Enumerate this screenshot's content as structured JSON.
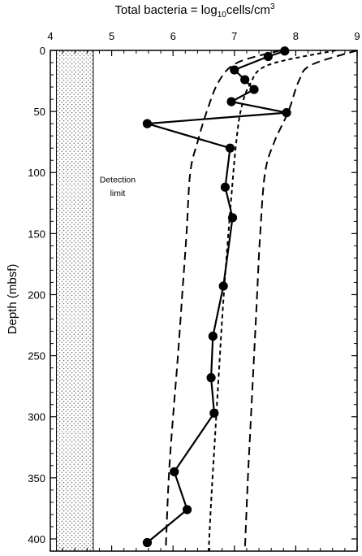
{
  "chart_data": {
    "type": "line",
    "title": {
      "prefix": "Total bacteria = log",
      "subscript": "10",
      "middle": "cells/cm",
      "superscript": "3"
    },
    "xlabel": "",
    "ylabel": "Depth (mbsf)",
    "xlim": [
      4,
      9
    ],
    "ylim": [
      0,
      410
    ],
    "y_inverted": true,
    "x_axis_position": "top",
    "x_ticks": [
      4,
      5,
      6,
      7,
      8,
      9
    ],
    "y_ticks": [
      0,
      50,
      100,
      150,
      200,
      250,
      300,
      350,
      400
    ],
    "grid": false,
    "detection_limit": {
      "x_range": [
        4.1,
        4.7
      ],
      "label_lines": [
        "Detection",
        "limit"
      ]
    },
    "series": [
      {
        "style": "solid-with-markers",
        "points": [
          [
            7.82,
            0.5
          ],
          [
            7.55,
            5
          ],
          [
            7.0,
            16
          ],
          [
            7.17,
            24
          ],
          [
            7.32,
            32
          ],
          [
            6.95,
            42
          ],
          [
            7.85,
            51
          ],
          [
            5.58,
            60
          ],
          [
            6.93,
            80
          ],
          [
            6.85,
            112
          ],
          [
            6.97,
            137
          ],
          [
            6.82,
            193
          ],
          [
            6.65,
            234
          ],
          [
            6.62,
            268
          ],
          [
            6.67,
            297
          ],
          [
            6.02,
            345
          ],
          [
            6.23,
            376
          ],
          [
            5.58,
            403
          ]
        ]
      },
      {
        "style": "dashed-inner",
        "points": [
          [
            8.65,
            0
          ],
          [
            7.55,
            12
          ],
          [
            7.25,
            28
          ],
          [
            7.1,
            50
          ],
          [
            7.02,
            80
          ],
          [
            6.95,
            120
          ],
          [
            6.87,
            170
          ],
          [
            6.8,
            220
          ],
          [
            6.74,
            270
          ],
          [
            6.68,
            320
          ],
          [
            6.62,
            370
          ],
          [
            6.58,
            410
          ]
        ]
      },
      {
        "style": "dashed-outer-left",
        "points": [
          [
            7.75,
            0
          ],
          [
            7.05,
            10
          ],
          [
            6.75,
            25
          ],
          [
            6.55,
            50
          ],
          [
            6.4,
            75
          ],
          [
            6.28,
            100
          ],
          [
            6.22,
            150
          ],
          [
            6.15,
            200
          ],
          [
            6.08,
            250
          ],
          [
            6.0,
            300
          ],
          [
            5.93,
            350
          ],
          [
            5.88,
            410
          ]
        ]
      },
      {
        "style": "dashed-outer-right",
        "points": [
          [
            9.0,
            0
          ],
          [
            8.25,
            12
          ],
          [
            8.05,
            25
          ],
          [
            7.88,
            50
          ],
          [
            7.65,
            75
          ],
          [
            7.5,
            100
          ],
          [
            7.42,
            150
          ],
          [
            7.37,
            200
          ],
          [
            7.32,
            250
          ],
          [
            7.27,
            300
          ],
          [
            7.22,
            350
          ],
          [
            7.17,
            410
          ]
        ]
      }
    ]
  }
}
